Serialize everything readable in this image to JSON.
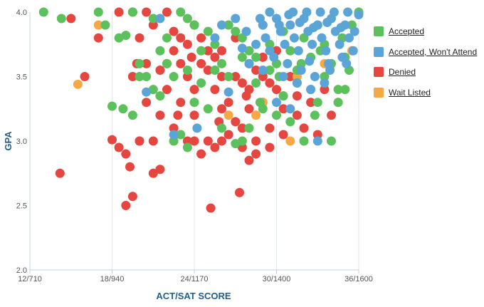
{
  "chart_data": {
    "type": "scatter",
    "title": "",
    "xlabel": "ACT/SAT SCORE",
    "ylabel": "GPA",
    "x_ticks": [
      "12/710",
      "18/940",
      "24/1170",
      "30/1400",
      "36/1600"
    ],
    "x_tick_values": [
      12,
      18,
      24,
      30,
      36
    ],
    "y_ticks": [
      "2.0",
      "2.5",
      "3.0",
      "3.5",
      "4.0"
    ],
    "y_tick_values": [
      2.0,
      2.5,
      3.0,
      3.5,
      4.0
    ],
    "xlim": [
      12,
      36
    ],
    "ylim": [
      2.0,
      4.0
    ],
    "grid": "vertical",
    "legend_position": "right",
    "series": [
      {
        "name": "Accepted",
        "color": "#5cc05c",
        "points": [
          [
            13.0,
            4.0
          ],
          [
            14.3,
            3.95
          ],
          [
            17.0,
            4.0
          ],
          [
            17.5,
            3.9
          ],
          [
            18.5,
            3.8
          ],
          [
            19.0,
            3.82
          ],
          [
            19.5,
            4.0
          ],
          [
            20.0,
            3.6
          ],
          [
            20.5,
            3.5
          ],
          [
            21.0,
            3.4
          ],
          [
            21.5,
            3.35
          ],
          [
            22.0,
            3.8
          ],
          [
            22.5,
            3.5
          ],
          [
            23.0,
            4.0
          ],
          [
            23.5,
            3.95
          ],
          [
            24.0,
            3.9
          ],
          [
            24.5,
            3.7
          ],
          [
            25.0,
            3.85
          ],
          [
            25.5,
            3.75
          ],
          [
            26.0,
            3.6
          ],
          [
            26.5,
            3.9
          ],
          [
            27.0,
            3.85
          ],
          [
            27.5,
            3.8
          ],
          [
            28.0,
            3.7
          ],
          [
            28.5,
            3.65
          ],
          [
            29.0,
            3.9
          ],
          [
            29.5,
            3.75
          ],
          [
            30.0,
            3.6
          ],
          [
            30.5,
            3.85
          ],
          [
            31.0,
            3.7
          ],
          [
            31.5,
            3.55
          ],
          [
            32.0,
            3.8
          ],
          [
            32.5,
            3.65
          ],
          [
            33.0,
            3.9
          ],
          [
            33.5,
            3.75
          ],
          [
            34.0,
            3.6
          ],
          [
            34.5,
            3.4
          ],
          [
            35.0,
            3.65
          ],
          [
            35.5,
            3.9
          ],
          [
            36.0,
            4.0
          ],
          [
            18.0,
            3.27
          ],
          [
            18.8,
            3.25
          ],
          [
            19.5,
            3.2
          ],
          [
            22.5,
            3.0
          ],
          [
            23.0,
            3.05
          ],
          [
            23.5,
            2.95
          ],
          [
            24.0,
            3.3
          ],
          [
            25.0,
            3.25
          ],
          [
            26.0,
            3.1
          ],
          [
            27.0,
            2.98
          ],
          [
            27.5,
            3.0
          ],
          [
            28.0,
            3.1
          ],
          [
            29.0,
            3.25
          ],
          [
            30.0,
            3.2
          ],
          [
            31.0,
            3.15
          ],
          [
            32.0,
            3.0
          ],
          [
            33.0,
            3.3
          ],
          [
            34.0,
            3.0
          ],
          [
            35.0,
            3.4
          ],
          [
            21.0,
            3.95
          ],
          [
            26.5,
            3.5
          ],
          [
            28.5,
            3.45
          ],
          [
            30.5,
            3.35
          ],
          [
            32.5,
            3.4
          ],
          [
            33.5,
            3.5
          ],
          [
            34.5,
            3.3
          ],
          [
            29.5,
            3.55
          ],
          [
            31.5,
            3.45
          ],
          [
            25.5,
            3.55
          ],
          [
            27.5,
            3.65
          ],
          [
            24.5,
            3.45
          ],
          [
            23.5,
            3.55
          ],
          [
            22.0,
            3.6
          ],
          [
            21.5,
            3.7
          ],
          [
            20.0,
            3.5
          ],
          [
            28.8,
            3.3
          ],
          [
            30.2,
            3.5
          ],
          [
            31.8,
            3.6
          ],
          [
            33.2,
            3.7
          ],
          [
            34.8,
            3.8
          ],
          [
            35.3,
            3.55
          ],
          [
            32.8,
            3.2
          ]
        ]
      },
      {
        "name": "Accepted, Won't Attend",
        "color": "#5ba5d6",
        "points": [
          [
            20.5,
            3.38
          ],
          [
            21.5,
            3.95
          ],
          [
            22.5,
            3.05
          ],
          [
            24.2,
            3.1
          ],
          [
            25.5,
            3.8
          ],
          [
            26.0,
            3.9
          ],
          [
            27.0,
            3.95
          ],
          [
            27.8,
            3.85
          ],
          [
            28.5,
            3.75
          ],
          [
            29.0,
            3.9
          ],
          [
            29.5,
            4.0
          ],
          [
            30.0,
            3.95
          ],
          [
            30.3,
            3.85
          ],
          [
            30.6,
            3.75
          ],
          [
            31.0,
            3.9
          ],
          [
            31.3,
            3.8
          ],
          [
            31.6,
            3.7
          ],
          [
            32.0,
            3.95
          ],
          [
            32.3,
            3.85
          ],
          [
            32.6,
            3.75
          ],
          [
            33.0,
            3.9
          ],
          [
            33.3,
            3.8
          ],
          [
            33.6,
            3.7
          ],
          [
            34.0,
            3.95
          ],
          [
            34.3,
            3.85
          ],
          [
            34.6,
            3.75
          ],
          [
            35.0,
            3.9
          ],
          [
            35.3,
            3.8
          ],
          [
            35.6,
            3.7
          ],
          [
            36.0,
            3.98
          ],
          [
            29.8,
            3.65
          ],
          [
            30.8,
            3.6
          ],
          [
            31.8,
            3.55
          ],
          [
            32.8,
            3.5
          ],
          [
            33.8,
            3.6
          ],
          [
            34.8,
            3.65
          ],
          [
            30.5,
            3.5
          ],
          [
            31.5,
            3.45
          ],
          [
            32.5,
            3.4
          ],
          [
            33.5,
            3.45
          ],
          [
            29.2,
            3.8
          ],
          [
            28.8,
            3.95
          ],
          [
            31.2,
            4.0
          ],
          [
            32.2,
            4.0
          ],
          [
            33.2,
            4.0
          ],
          [
            34.2,
            4.0
          ],
          [
            35.2,
            4.0
          ],
          [
            30.0,
            3.3
          ],
          [
            31.0,
            3.25
          ],
          [
            33.0,
            3.0
          ],
          [
            26.5,
            3.38
          ],
          [
            28.0,
            3.6
          ],
          [
            29.5,
            3.7
          ],
          [
            30.2,
            3.9
          ],
          [
            31.7,
            3.92
          ],
          [
            32.7,
            3.88
          ],
          [
            33.7,
            3.92
          ],
          [
            34.7,
            3.88
          ],
          [
            35.7,
            3.85
          ],
          [
            30.9,
            3.98
          ],
          [
            32.4,
            3.62
          ],
          [
            33.9,
            3.55
          ],
          [
            35.1,
            3.6
          ],
          [
            29.0,
            3.55
          ],
          [
            27.5,
            3.72
          ]
        ]
      },
      {
        "name": "Denied",
        "color": "#e5463f",
        "points": [
          [
            14.2,
            2.75
          ],
          [
            15.0,
            3.95
          ],
          [
            16.0,
            3.5
          ],
          [
            17.0,
            3.8
          ],
          [
            18.0,
            3.01
          ],
          [
            18.5,
            2.95
          ],
          [
            19.0,
            2.9
          ],
          [
            19.3,
            2.8
          ],
          [
            19.5,
            2.57
          ],
          [
            19.0,
            2.5
          ],
          [
            19.8,
            3.6
          ],
          [
            20.0,
            3.0
          ],
          [
            20.5,
            3.6
          ],
          [
            21.0,
            2.75
          ],
          [
            21.5,
            2.78
          ],
          [
            22.0,
            3.6
          ],
          [
            22.5,
            3.7
          ],
          [
            23.0,
            3.3
          ],
          [
            23.5,
            3.5
          ],
          [
            24.0,
            3.2
          ],
          [
            24.5,
            3.6
          ],
          [
            25.0,
            3.0
          ],
          [
            25.5,
            3.4
          ],
          [
            26.0,
            3.7
          ],
          [
            26.5,
            3.3
          ],
          [
            27.0,
            3.5
          ],
          [
            27.3,
            2.6
          ],
          [
            27.5,
            3.1
          ],
          [
            28.0,
            3.4
          ],
          [
            28.5,
            3.0
          ],
          [
            29.0,
            3.3
          ],
          [
            29.5,
            3.1
          ],
          [
            30.0,
            3.4
          ],
          [
            30.5,
            3.05
          ],
          [
            31.0,
            3.5
          ],
          [
            31.5,
            3.2
          ],
          [
            32.0,
            3.1
          ],
          [
            32.5,
            3.3
          ],
          [
            33.0,
            3.05
          ],
          [
            33.5,
            3.4
          ],
          [
            34.0,
            3.2
          ],
          [
            25.2,
            2.48
          ],
          [
            20.0,
            3.8
          ],
          [
            21.0,
            3.9
          ],
          [
            22.0,
            4.0
          ],
          [
            23.0,
            3.8
          ],
          [
            24.0,
            3.9
          ],
          [
            25.0,
            3.7
          ],
          [
            26.0,
            3.5
          ],
          [
            27.0,
            3.8
          ],
          [
            28.0,
            3.6
          ],
          [
            29.0,
            3.5
          ],
          [
            30.0,
            3.7
          ],
          [
            19.5,
            3.5
          ],
          [
            20.5,
            3.3
          ],
          [
            21.5,
            3.2
          ],
          [
            22.5,
            3.1
          ],
          [
            23.5,
            3.0
          ],
          [
            24.5,
            2.9
          ],
          [
            25.5,
            2.95
          ],
          [
            26.5,
            3.05
          ],
          [
            27.5,
            2.95
          ],
          [
            28.5,
            2.9
          ],
          [
            28.0,
            2.85
          ],
          [
            29.5,
            2.95
          ],
          [
            22.0,
            3.4
          ],
          [
            23.0,
            3.6
          ],
          [
            24.0,
            3.4
          ],
          [
            25.0,
            3.55
          ],
          [
            26.0,
            3.25
          ],
          [
            27.0,
            3.15
          ],
          [
            28.0,
            3.25
          ],
          [
            29.0,
            3.65
          ],
          [
            18.5,
            4.0
          ],
          [
            19.5,
            4.0
          ],
          [
            20.5,
            4.0
          ],
          [
            21.5,
            3.55
          ],
          [
            22.5,
            3.85
          ],
          [
            23.5,
            3.75
          ],
          [
            24.5,
            3.8
          ],
          [
            25.5,
            3.65
          ],
          [
            26.5,
            3.9
          ],
          [
            27.5,
            3.45
          ],
          [
            28.5,
            3.55
          ],
          [
            29.5,
            3.45
          ],
          [
            30.5,
            3.25
          ],
          [
            31.5,
            3.35
          ],
          [
            20.0,
            3.0
          ],
          [
            21.0,
            3.0
          ],
          [
            24.0,
            3.0
          ],
          [
            26.0,
            3.0
          ],
          [
            22.8,
            3.2
          ],
          [
            25.8,
            3.15
          ],
          [
            27.8,
            3.35
          ],
          [
            23.8,
            3.65
          ]
        ]
      },
      {
        "name": "Wait Listed",
        "color": "#f5a843",
        "points": [
          [
            15.5,
            3.44
          ],
          [
            17.0,
            3.9
          ],
          [
            22.5,
            3.0
          ],
          [
            26.5,
            3.2
          ],
          [
            29.0,
            3.3
          ],
          [
            30.5,
            3.35
          ],
          [
            31.0,
            3.0
          ],
          [
            31.5,
            3.5
          ],
          [
            33.5,
            3.6
          ],
          [
            34.5,
            3.3
          ],
          [
            35.5,
            3.7
          ],
          [
            28.5,
            3.2
          ]
        ]
      }
    ]
  }
}
